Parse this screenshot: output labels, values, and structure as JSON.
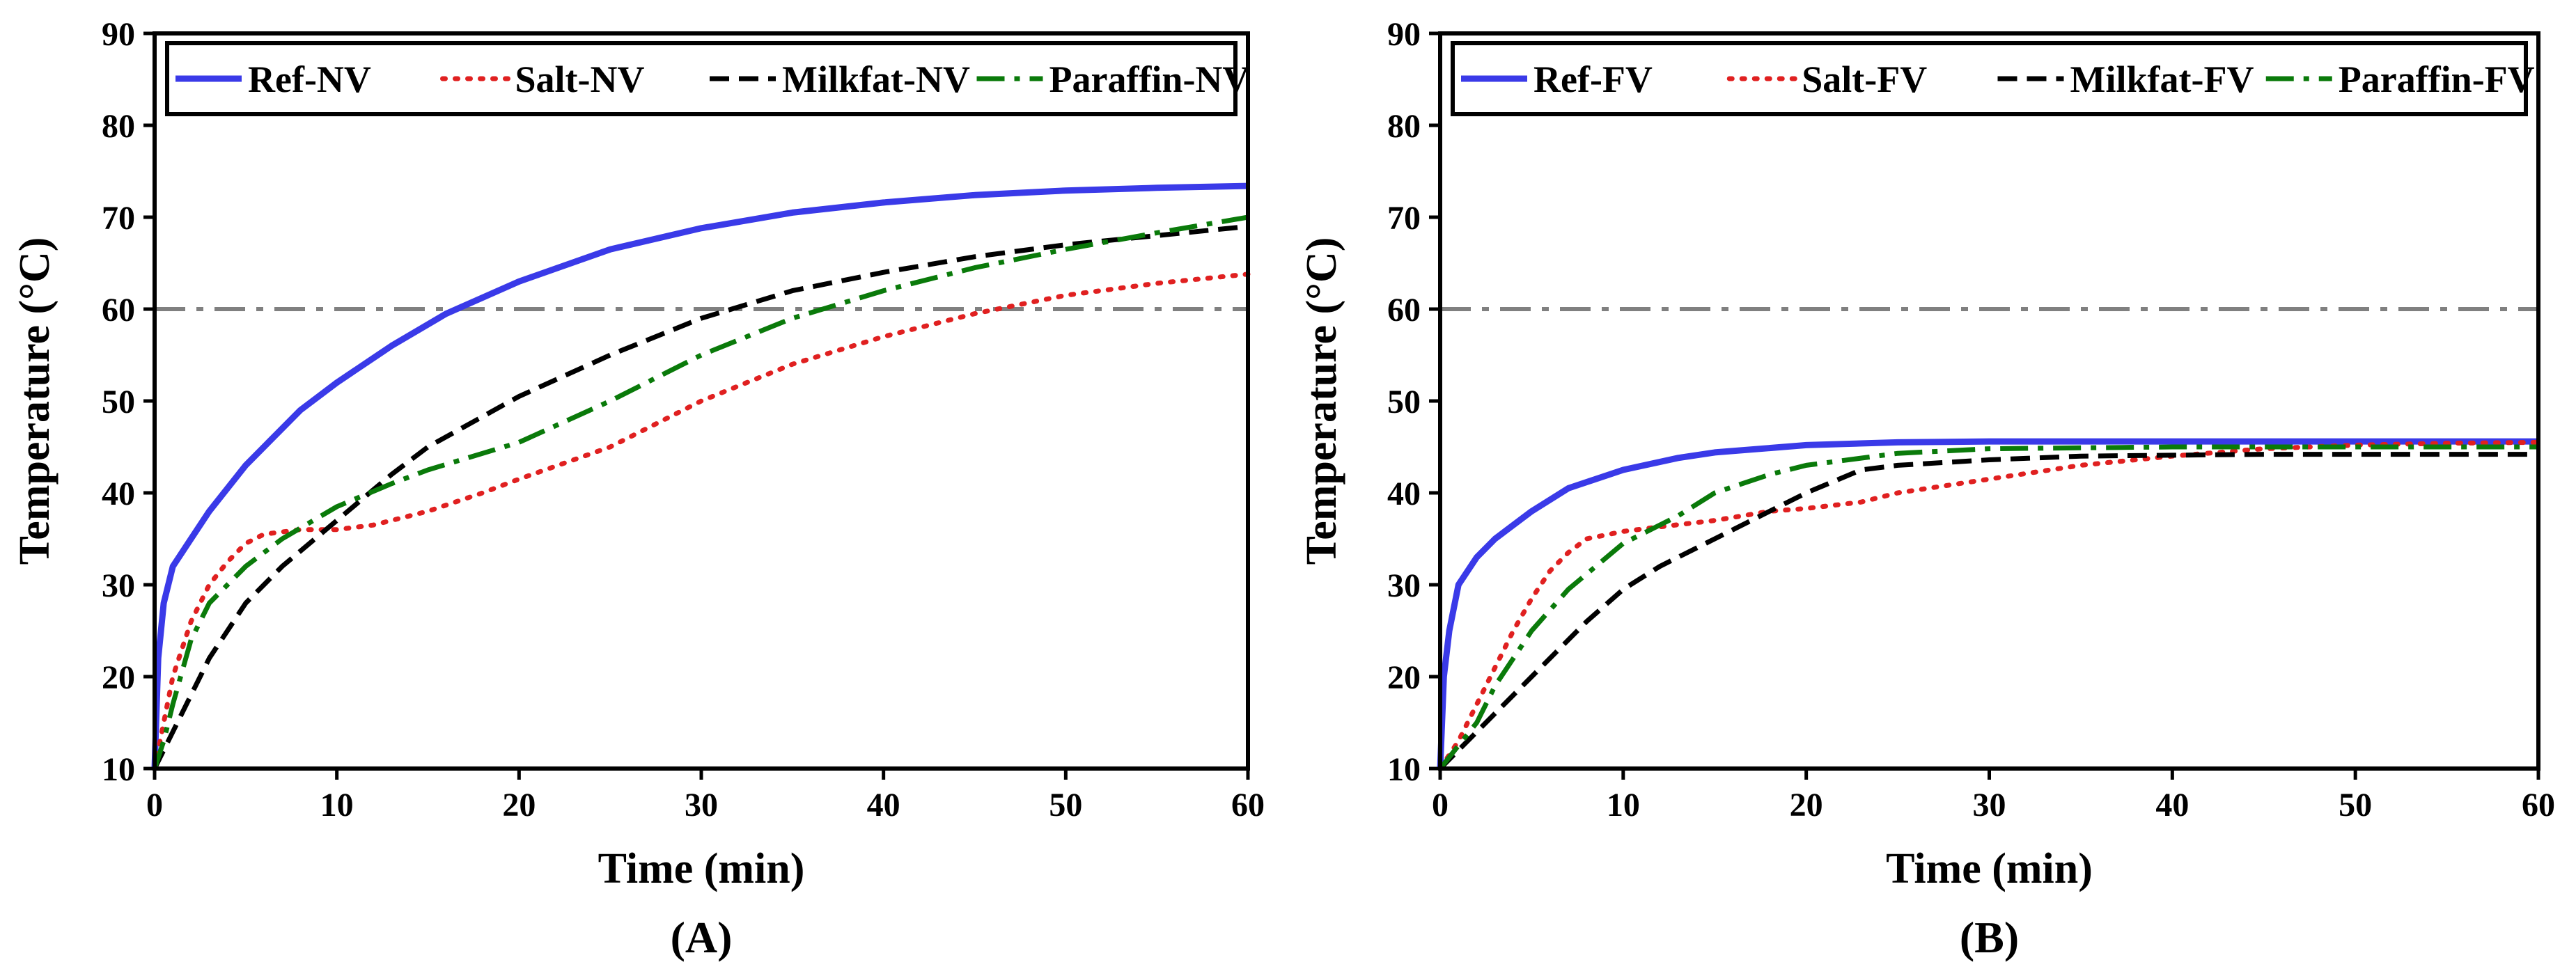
{
  "chart_data": [
    {
      "type": "line",
      "panel_label": "(A)",
      "xlabel": "Time (min)",
      "ylabel": "Temperature (°C)",
      "xlim": [
        0,
        60
      ],
      "ylim": [
        10,
        90
      ],
      "xticks": [
        "0",
        "10",
        "20",
        "30",
        "40",
        "50",
        "60"
      ],
      "yticks": [
        "10",
        "20",
        "30",
        "40",
        "50",
        "60",
        "70",
        "80",
        "90"
      ],
      "legend_position": "top",
      "reference_line": {
        "y": 60,
        "color": "#808080",
        "style": "dash-dot"
      },
      "series": [
        {
          "name": "Ref-NV",
          "color": "#3a3ae8",
          "style": "solid",
          "x": [
            0,
            0.2,
            0.5,
            1,
            2,
            3,
            5,
            8,
            10,
            13,
            16,
            20,
            25,
            30,
            35,
            40,
            45,
            50,
            55,
            60
          ],
          "y": [
            10,
            22,
            28,
            32,
            35,
            38,
            43,
            49,
            52,
            56,
            59.5,
            63,
            66.5,
            68.8,
            70.5,
            71.6,
            72.4,
            72.9,
            73.2,
            73.4
          ]
        },
        {
          "name": "Salt-NV",
          "color": "#e02020",
          "style": "dotted",
          "x": [
            0,
            0.5,
            1,
            2,
            3,
            4,
            5,
            6,
            8,
            10,
            12,
            15,
            18,
            20,
            25,
            30,
            35,
            40,
            45,
            50,
            55,
            60
          ],
          "y": [
            10,
            15,
            20,
            26,
            30,
            32.5,
            34.5,
            35.5,
            36,
            36,
            36.5,
            38,
            40,
            41.5,
            45,
            50,
            54,
            57,
            59.5,
            61.5,
            62.8,
            63.8
          ]
        },
        {
          "name": "Milkfat-NV",
          "color": "#000000",
          "style": "dashed",
          "x": [
            0,
            1,
            2,
            3,
            5,
            7,
            10,
            13,
            15,
            20,
            25,
            30,
            35,
            40,
            45,
            50,
            55,
            60
          ],
          "y": [
            10,
            14,
            18,
            22,
            28,
            32,
            37,
            42,
            45,
            50.5,
            55,
            59,
            62,
            64,
            65.7,
            67,
            68,
            69
          ]
        },
        {
          "name": "Paraffin-NV",
          "color": "#0a7a0a",
          "style": "dash-dot",
          "x": [
            0,
            0.5,
            1,
            2,
            3,
            5,
            7,
            10,
            13,
            15,
            20,
            25,
            30,
            35,
            40,
            45,
            50,
            55,
            60
          ],
          "y": [
            10,
            13,
            17,
            24,
            28,
            32,
            35,
            38.5,
            41,
            42.5,
            45.5,
            50,
            55,
            59,
            62,
            64.5,
            66.5,
            68.3,
            70
          ]
        }
      ]
    },
    {
      "type": "line",
      "panel_label": "(B)",
      "xlabel": "Time (min)",
      "ylabel": "Temperature (°C)",
      "xlim": [
        0,
        60
      ],
      "ylim": [
        10,
        90
      ],
      "xticks": [
        "0",
        "10",
        "20",
        "30",
        "40",
        "50",
        "60"
      ],
      "yticks": [
        "10",
        "20",
        "30",
        "40",
        "50",
        "60",
        "70",
        "80",
        "90"
      ],
      "legend_position": "top",
      "reference_line": {
        "y": 60,
        "color": "#808080",
        "style": "dash-dot"
      },
      "series": [
        {
          "name": "Ref-FV",
          "color": "#3a3ae8",
          "style": "solid",
          "x": [
            0,
            0.2,
            0.5,
            1,
            2,
            3,
            5,
            7,
            10,
            13,
            15,
            20,
            25,
            30,
            40,
            50,
            60
          ],
          "y": [
            10,
            20,
            25,
            30,
            33,
            35,
            38,
            40.5,
            42.5,
            43.8,
            44.4,
            45.2,
            45.5,
            45.6,
            45.6,
            45.6,
            45.6
          ]
        },
        {
          "name": "Salt-FV",
          "color": "#e02020",
          "style": "dotted",
          "x": [
            0,
            1,
            2,
            3,
            4,
            5,
            6,
            7,
            8,
            10,
            12,
            15,
            18,
            20,
            23,
            25,
            30,
            35,
            40,
            45,
            50,
            55,
            60
          ],
          "y": [
            10,
            13,
            17,
            21,
            25,
            28.5,
            31.5,
            33.5,
            35,
            35.8,
            36.3,
            37,
            38,
            38.3,
            39,
            40,
            41.5,
            43,
            44,
            44.8,
            45.2,
            45.4,
            45.5
          ]
        },
        {
          "name": "Milkfat-FV",
          "color": "#000000",
          "style": "dashed",
          "x": [
            0,
            1,
            2,
            3,
            5,
            7,
            8,
            10,
            12,
            15,
            18,
            20,
            23,
            25,
            30,
            35,
            40,
            45,
            50,
            55,
            60
          ],
          "y": [
            10,
            12,
            14,
            16,
            20,
            24,
            26,
            29.5,
            32,
            35,
            38,
            40,
            42.5,
            43,
            43.6,
            44,
            44.1,
            44.2,
            44.2,
            44.2,
            44.2
          ]
        },
        {
          "name": "Paraffin-FV",
          "color": "#0a7a0a",
          "style": "dash-dot",
          "x": [
            0,
            1,
            2,
            3,
            5,
            7,
            10,
            13,
            15,
            18,
            20,
            25,
            30,
            40,
            50,
            60
          ],
          "y": [
            10,
            12.5,
            15,
            19,
            25,
            29.5,
            34.5,
            37.5,
            40,
            42,
            43,
            44.3,
            44.8,
            45,
            45,
            45
          ]
        }
      ]
    }
  ]
}
